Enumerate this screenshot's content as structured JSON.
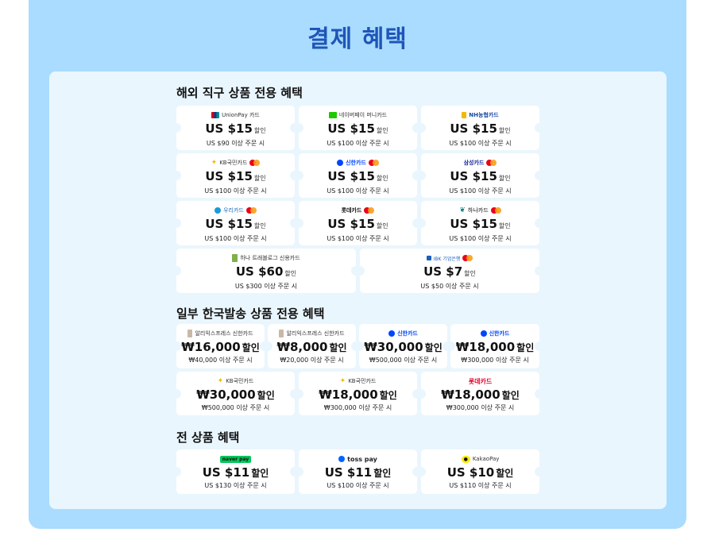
{
  "page_title": "결제 혜택",
  "colors": {
    "outer_bg": "#a9dcfe",
    "inner_bg": "#eaf6fe",
    "title": "#1f55b8"
  },
  "sections": [
    {
      "title": "해외 직구 상품 전용 혜택",
      "coupons": [
        {
          "brand": "UnionPay 카드",
          "icon": "unionpay-icon",
          "mastercard": false,
          "amount": "US $15",
          "discount": "할인",
          "condition": "US $90 이상 주문 시"
        },
        {
          "brand": "네이버페이 머니카드",
          "icon": "naverpay-icon",
          "mastercard": false,
          "amount": "US $15",
          "discount": "할인",
          "condition": "US $100 이상 주문 시"
        },
        {
          "brand": "NH농협카드",
          "icon": "nh-icon",
          "mastercard": false,
          "amount": "US $15",
          "discount": "할인",
          "condition": "US $100 이상 주문 시"
        },
        {
          "brand": "KB국민카드",
          "icon": "kb-icon",
          "mastercard": true,
          "amount": "US $15",
          "discount": "할인",
          "condition": "US $100 이상 주문 시"
        },
        {
          "brand": "신한카드",
          "icon": "shinhan-icon",
          "mastercard": true,
          "amount": "US $15",
          "discount": "할인",
          "condition": "US $100 이상 주문 시"
        },
        {
          "brand": "삼성카드",
          "icon": "samsung-icon",
          "mastercard": true,
          "amount": "US $15",
          "discount": "할인",
          "condition": "US $100 이상 주문 시"
        },
        {
          "brand": "우리카드",
          "icon": "woori-icon",
          "mastercard": true,
          "amount": "US $15",
          "discount": "할인",
          "condition": "US $100 이상 주문 시"
        },
        {
          "brand": "롯데카드",
          "icon": "lotte-icon",
          "mastercard": true,
          "amount": "US $15",
          "discount": "할인",
          "condition": "US $100 이상 주문 시"
        },
        {
          "brand": "하나카드",
          "icon": "hana-icon",
          "mastercard": true,
          "amount": "US $15",
          "discount": "할인",
          "condition": "US $100 이상 주문 시"
        },
        {
          "brand": "하나 트래블로그 신용카드",
          "icon": "travlog-card-icon",
          "mastercard": false,
          "amount": "US $60",
          "discount": "할인",
          "condition": "US $300 이상 주문 시"
        },
        {
          "brand": "IBK 기업은행",
          "icon": "ibk-icon",
          "mastercard": true,
          "amount": "US $7",
          "discount": "할인",
          "condition": "US $50 이상 주문 시"
        }
      ]
    },
    {
      "title": "일부 한국발송 상품 전용 혜택",
      "coupons": [
        {
          "brand": "알리익스프레스 신한카드",
          "icon": "aliexpress-card-icon",
          "mastercard": false,
          "amount": "₩16,000",
          "discount": "할인",
          "condition": "₩40,000 이상 주문 시"
        },
        {
          "brand": "알리익스프레스 신한카드",
          "icon": "aliexpress-card-icon",
          "mastercard": false,
          "amount": "₩8,000",
          "discount": "할인",
          "condition": "₩20,000 이상 주문 시"
        },
        {
          "brand": "신한카드",
          "icon": "shinhan-icon",
          "mastercard": false,
          "amount": "₩30,000",
          "discount": "할인",
          "condition": "₩500,000 이상 주문 시"
        },
        {
          "brand": "신한카드",
          "icon": "shinhan-icon",
          "mastercard": false,
          "amount": "₩18,000",
          "discount": "할인",
          "condition": "₩300,000 이상 주문 시"
        },
        {
          "brand": "KB국민카드",
          "icon": "kb-icon",
          "mastercard": false,
          "amount": "₩30,000",
          "discount": "할인",
          "condition": "₩500,000 이상 주문 시"
        },
        {
          "brand": "KB국민카드",
          "icon": "kb-icon",
          "mastercard": false,
          "amount": "₩18,000",
          "discount": "할인",
          "condition": "₩300,000 이상 주문 시"
        },
        {
          "brand": "롯데카드",
          "icon": "lotte-icon",
          "mastercard": false,
          "amount": "₩18,000",
          "discount": "할인",
          "condition": "₩300,000 이상 주문 시"
        }
      ]
    },
    {
      "title": "전 상품 혜택",
      "coupons": [
        {
          "brand": "naver pay",
          "icon": "naverpay-icon",
          "mastercard": false,
          "amount": "US $11",
          "discount": "할인",
          "condition": "US $130 이상 주문 시"
        },
        {
          "brand": "toss pay",
          "icon": "tosspay-icon",
          "mastercard": false,
          "amount": "US $11",
          "discount": "할인",
          "condition": "US $100 이상 주문 시"
        },
        {
          "brand": "KakaoPay",
          "icon": "kakaopay-icon",
          "mastercard": false,
          "amount": "US $10",
          "discount": "할인",
          "condition": "US $110 이상 주문 시"
        }
      ]
    }
  ]
}
